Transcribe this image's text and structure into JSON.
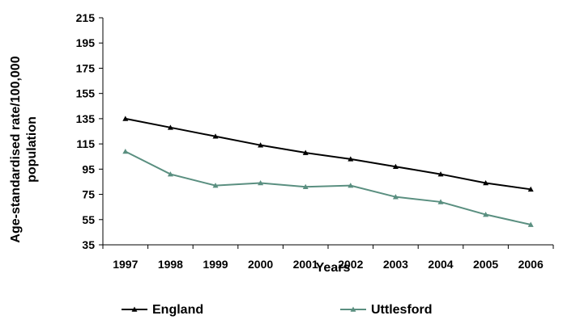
{
  "chart_data": {
    "type": "line",
    "title": "",
    "xlabel": "Years",
    "ylabel_line1": "Age-standardised rate/100,000",
    "ylabel_line2": "population",
    "categories": [
      "1997",
      "1998",
      "1999",
      "2000",
      "2001",
      "2002",
      "2003",
      "2004",
      "2005",
      "2006"
    ],
    "ylim": [
      35,
      215
    ],
    "yticks": [
      35,
      55,
      75,
      95,
      115,
      135,
      155,
      175,
      195,
      215
    ],
    "grid": false,
    "legend_position": "bottom",
    "series": [
      {
        "name": "England",
        "color": "#000000",
        "marker": "triangle",
        "values": [
          135,
          128,
          121,
          114,
          108,
          103,
          97,
          91,
          84,
          79
        ]
      },
      {
        "name": "Uttlesford",
        "color": "#5a8f80",
        "marker": "triangle",
        "values": [
          109,
          91,
          82,
          84,
          81,
          82,
          73,
          69,
          59,
          51
        ]
      }
    ]
  }
}
